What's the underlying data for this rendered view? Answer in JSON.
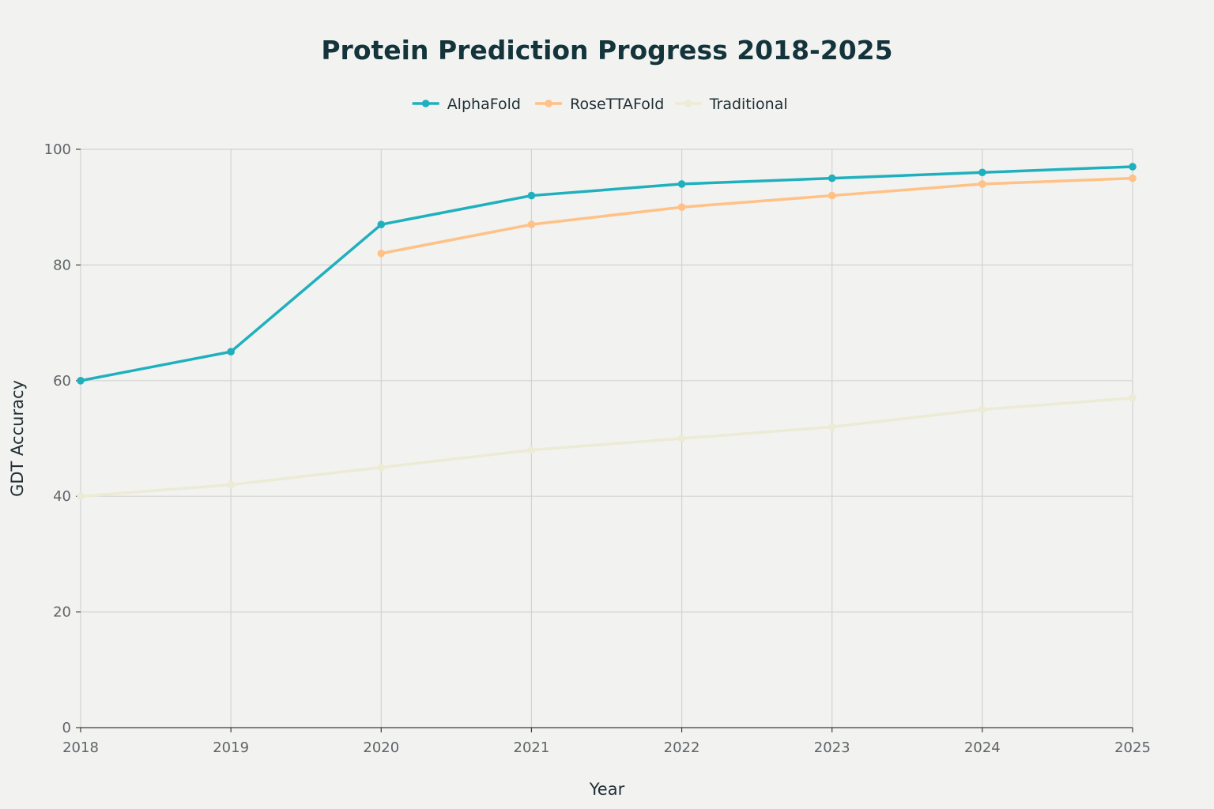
{
  "chart_data": {
    "type": "line",
    "title": "Protein Prediction Progress 2018-2025",
    "xlabel": "Year",
    "ylabel": "GDT Accuracy",
    "x": [
      2018,
      2019,
      2020,
      2021,
      2022,
      2023,
      2024,
      2025
    ],
    "xtick_labels": [
      "2018",
      "2019",
      "2020",
      "2021",
      "2022",
      "2023",
      "2024",
      "2025"
    ],
    "ylim": [
      0,
      100
    ],
    "yticks": [
      0,
      20,
      40,
      60,
      80,
      100
    ],
    "ytick_labels": [
      "0",
      "20",
      "40",
      "60",
      "80",
      "100"
    ],
    "grid": true,
    "legend_position": "top-center",
    "series": [
      {
        "name": "AlphaFold",
        "color": "#1fb0be",
        "values": [
          60,
          65,
          87,
          92,
          94,
          95,
          96,
          97
        ]
      },
      {
        "name": "RoseTTAFold",
        "color": "#ffc185",
        "values": [
          null,
          null,
          82,
          87,
          90,
          92,
          94,
          95
        ]
      },
      {
        "name": "Traditional",
        "color": "#ecebd5",
        "values": [
          40,
          42,
          45,
          48,
          50,
          52,
          55,
          57
        ]
      }
    ]
  }
}
